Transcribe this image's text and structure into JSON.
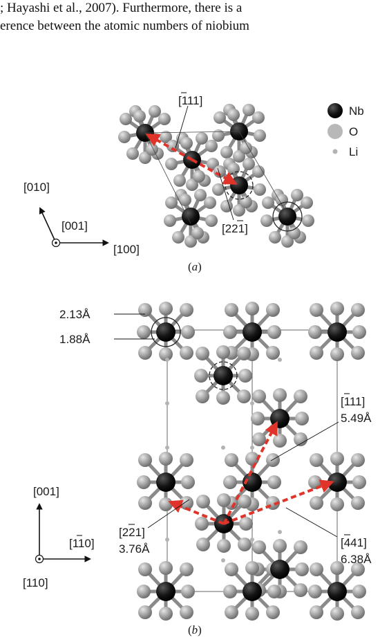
{
  "text": {
    "line1": "; Hayashi et al., 2007). Furthermore, there is a",
    "line2": "erence between the atomic numbers of niobium"
  },
  "legend": {
    "nb": "Nb",
    "o": "O",
    "li": "Li"
  },
  "colors": {
    "nb": "#111111",
    "o": "#9a9a9a",
    "li": "#b9b9b9",
    "arrow": "#e0342a"
  },
  "panel_a": {
    "caption": "a",
    "dir_111": "[111]",
    "dir_221": "[221]",
    "axis_010": "[010]",
    "axis_001": "[001]",
    "axis_100": "[100]"
  },
  "panel_b": {
    "caption": "b",
    "dist_213": "2.13Å",
    "dist_188": "1.88Å",
    "dir_111": "[111]",
    "dist_549": "5.49Å",
    "dir_221": "[221]",
    "dist_376": "3.76Å",
    "dir_441": "[441]",
    "dist_638": "6.38Å",
    "axis_001": "[001]",
    "axis_110bar": "[110]",
    "axis_110": "[110]"
  }
}
